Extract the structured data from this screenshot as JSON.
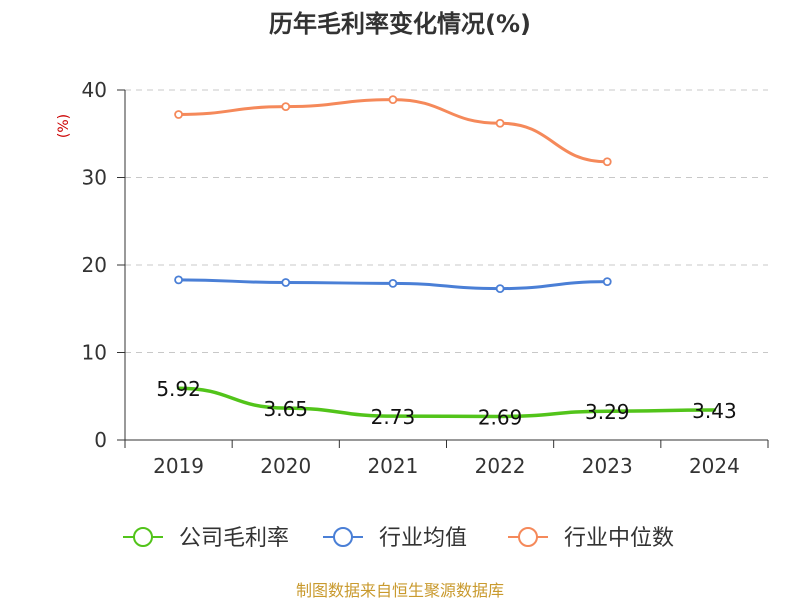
{
  "chart_data": {
    "type": "line",
    "title": "历年毛利率变化情况(%)",
    "ylabel": "(%)",
    "ylim": [
      0,
      40
    ],
    "yticks": [
      0,
      10,
      20,
      30,
      40
    ],
    "categories": [
      "2019",
      "2020",
      "2021",
      "2022",
      "2023",
      "2024"
    ],
    "grid": true,
    "legend_position": "bottom",
    "series": [
      {
        "name": "公司毛利率",
        "color": "#52c41a",
        "values": [
          5.92,
          3.65,
          2.73,
          2.69,
          3.29,
          3.43
        ],
        "labels": [
          "5.92",
          "3.65",
          "2.73",
          "2.69",
          "3.29",
          "3.43"
        ],
        "markers": false
      },
      {
        "name": "行业均值",
        "color": "#4a7fd6",
        "values": [
          18.3,
          18.0,
          17.9,
          17.3,
          18.1,
          null
        ],
        "markers": true
      },
      {
        "name": "行业中位数",
        "color": "#f5895a",
        "values": [
          37.2,
          38.1,
          38.9,
          36.2,
          31.8,
          null
        ],
        "markers": true
      }
    ]
  },
  "footer": {
    "source": "制图数据来自恒生聚源数据库",
    "source_color": "#c99a2e"
  }
}
